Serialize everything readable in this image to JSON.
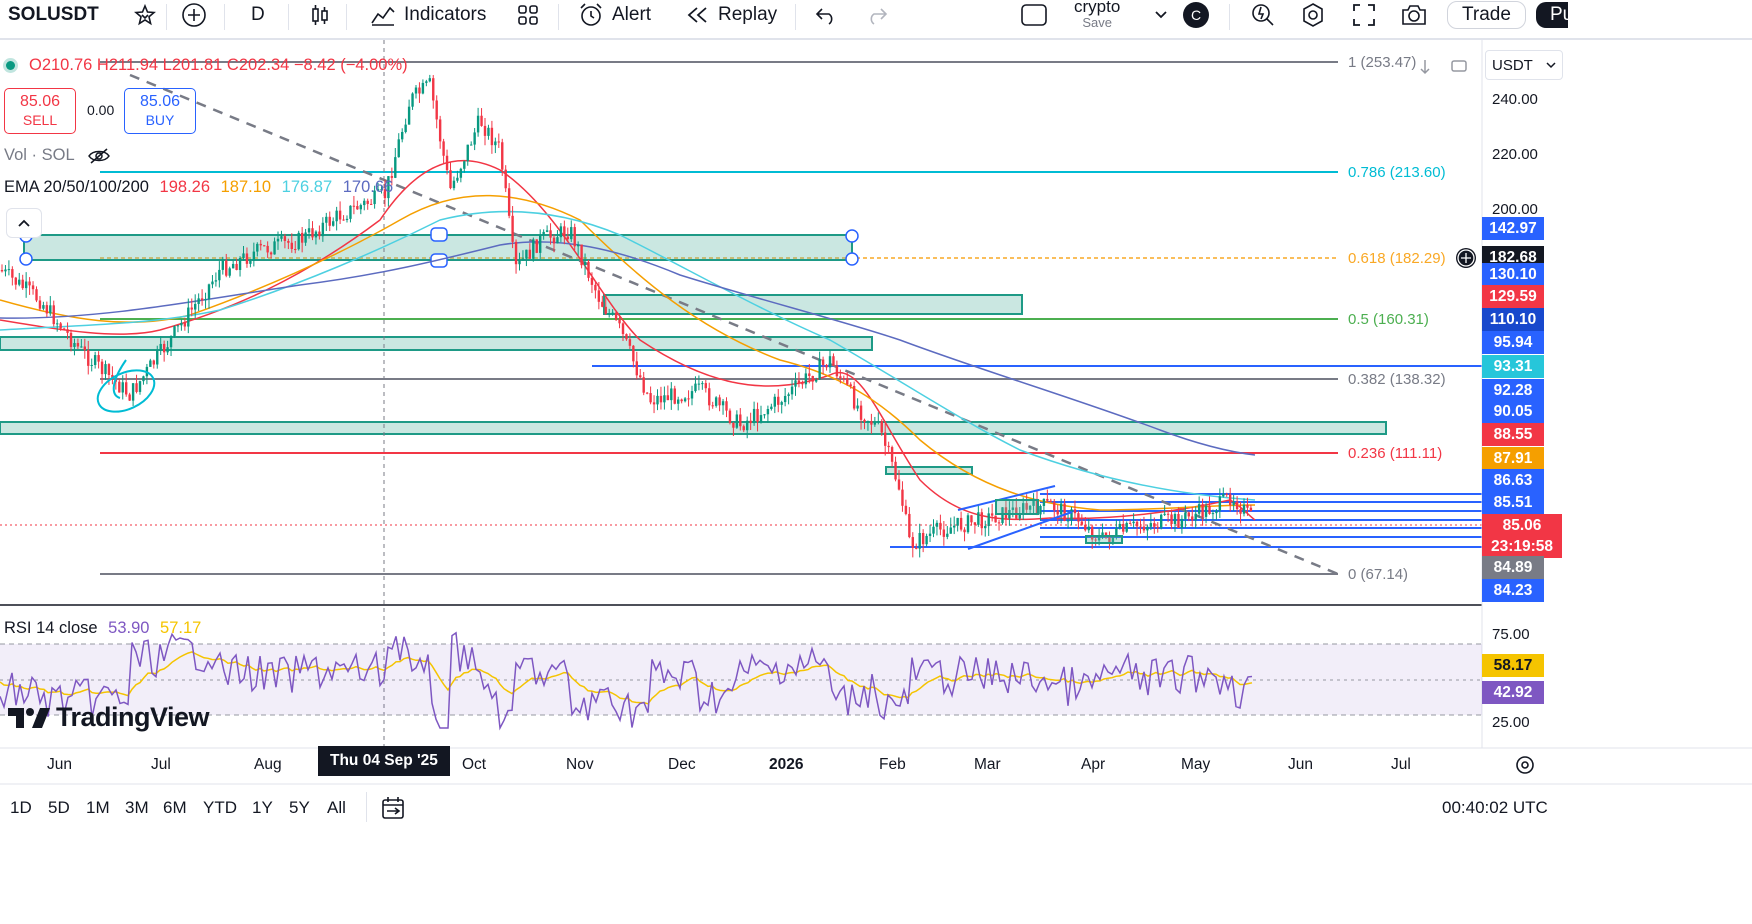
{
  "toolbar": {
    "symbol": "SOLUSDT",
    "interval": "D",
    "indicators_label": "Indicators",
    "alert_label": "Alert",
    "replay_label": "Replay",
    "layout_name": "crypto",
    "layout_save": "Save",
    "avatar_letter": "C",
    "trade_label": "Trade",
    "publish_label": "Pu"
  },
  "legend": {
    "ohlc_open": "O210.76",
    "ohlc_high": "H211.94",
    "ohlc_low": "L201.81",
    "ohlc_close": "C202.34",
    "change": "−8.42 (−4.00%)",
    "sell_price": "85.06",
    "sell_label": "SELL",
    "spread": "0.00",
    "buy_price": "85.06",
    "buy_label": "BUY",
    "vol_label": "Vol · SOL",
    "ema_label": "EMA 20/50/100/200",
    "ema20": "198.26",
    "ema50": "187.10",
    "ema100": "176.87",
    "ema200": "170.66",
    "rsi_label": "RSI 14 close",
    "rsi_value": "53.90",
    "rsi_ma": "57.17"
  },
  "scale": {
    "currency": "USDT",
    "ticks": [
      "240.00",
      "220.00",
      "200.00"
    ],
    "rsi_ticks": [
      "75.00",
      "25.00"
    ]
  },
  "fib_levels": [
    {
      "label": "1 (253.47)",
      "color": "#787b86"
    },
    {
      "label": "0.786 (213.60)",
      "color": "#00bcd4"
    },
    {
      "label": "0.618 (182.29)",
      "color": "#f9a825"
    },
    {
      "label": "0.5 (160.31)",
      "color": "#4caf50"
    },
    {
      "label": "0.382 (138.32)",
      "color": "#787b86"
    },
    {
      "label": "0.236 (111.11)",
      "color": "#f23645"
    },
    {
      "label": "0 (67.14)",
      "color": "#787b86"
    }
  ],
  "price_tags": [
    {
      "value": "142.97",
      "color": "#2962ff"
    },
    {
      "value": "182.68",
      "color": "#131722"
    },
    {
      "value": "130.10",
      "color": "#2962ff"
    },
    {
      "value": "129.59",
      "color": "#f23645"
    },
    {
      "value": "110.10",
      "color": "#1848cc"
    },
    {
      "value": "95.94",
      "color": "#2962ff"
    },
    {
      "value": "93.31",
      "color": "#26c6da"
    },
    {
      "value": "92.28",
      "color": "#2962ff"
    },
    {
      "value": "90.05",
      "color": "#2962ff"
    },
    {
      "value": "88.55",
      "color": "#f23645"
    },
    {
      "value": "87.91",
      "color": "#f59f00"
    },
    {
      "value": "86.63",
      "color": "#2962ff"
    },
    {
      "value": "85.51",
      "color": "#2962ff"
    },
    {
      "value": "85.06",
      "color": "#f23645"
    },
    {
      "value": "23:19:58",
      "color": "#f23645"
    },
    {
      "value": "84.89",
      "color": "#787b86"
    },
    {
      "value": "84.23",
      "color": "#2962ff"
    },
    {
      "value": "58.17",
      "color": "#f5c400"
    },
    {
      "value": "42.92",
      "color": "#7e57c2"
    }
  ],
  "time_axis": {
    "labels": [
      "Jun",
      "Jul",
      "Aug",
      "Thu 04 Sep '25",
      "Oct",
      "Nov",
      "Dec",
      "2026",
      "Feb",
      "Mar",
      "Apr",
      "May",
      "Jun",
      "Jul"
    ]
  },
  "ranges": [
    "1D",
    "5D",
    "1M",
    "3M",
    "6M",
    "YTD",
    "1Y",
    "5Y",
    "All"
  ],
  "clock": "00:40:02 UTC",
  "brand": "TradingView",
  "colors": {
    "up": "#089981",
    "down": "#f23645",
    "ema20": "#f23645",
    "ema50": "#f59f00",
    "ema100": "#4dd0e1",
    "ema200": "#5c6bc0",
    "rsi": "#7e57c2",
    "rsi_ma": "#f5c400"
  }
}
